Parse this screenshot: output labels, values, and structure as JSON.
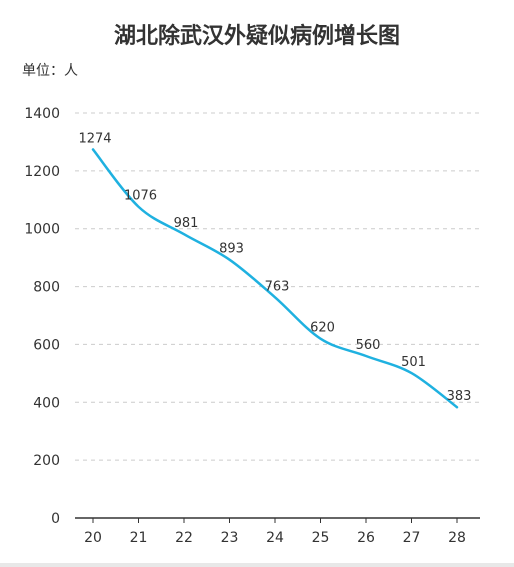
{
  "chart_data": {
    "type": "line",
    "title": "湖北除武汉外疑似病例增长图",
    "unit_label": "单位：人",
    "x": [
      "20",
      "21",
      "22",
      "23",
      "24",
      "25",
      "26",
      "27",
      "28"
    ],
    "y": [
      1274,
      1076,
      981,
      893,
      763,
      620,
      560,
      501,
      383
    ],
    "yticks": [
      "0",
      "200",
      "400",
      "600",
      "800",
      "1000",
      "1200",
      "1400"
    ],
    "ylim": [
      0,
      1400
    ],
    "grid": true,
    "legend": "none",
    "colors": {
      "line": "#1fb1e0",
      "grid": "#cccccc",
      "axis": "#333333"
    }
  }
}
